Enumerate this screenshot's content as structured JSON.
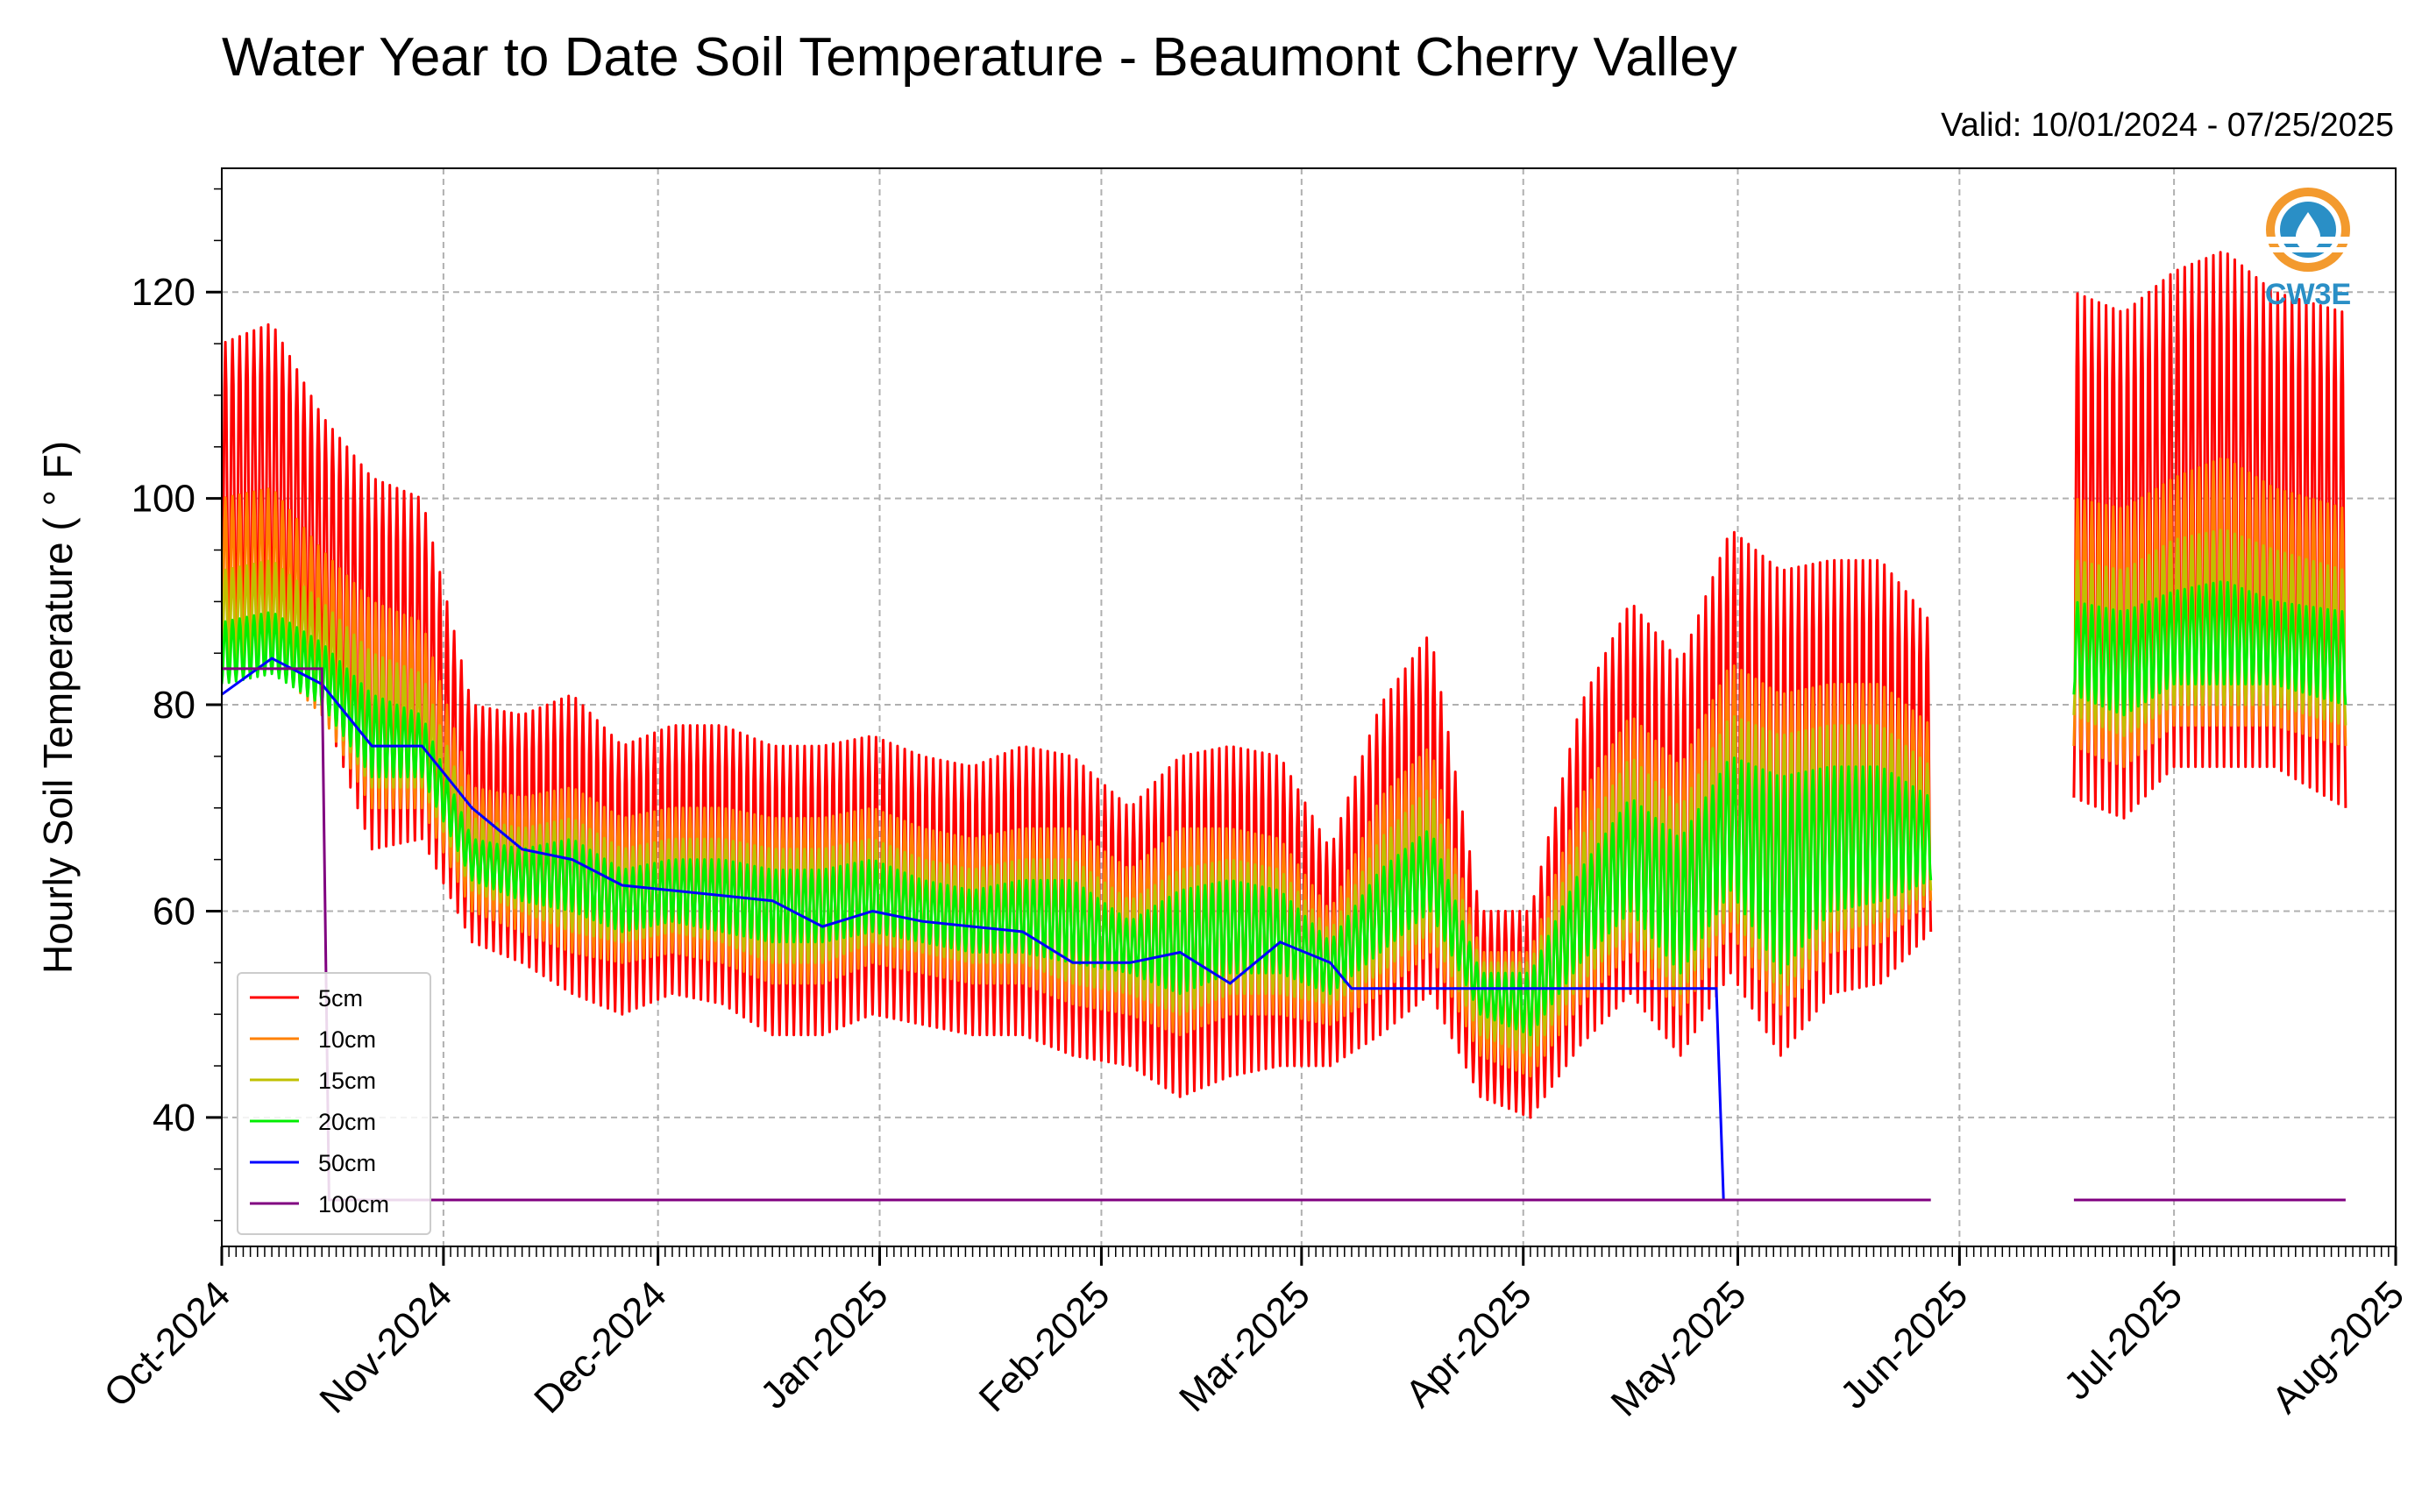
{
  "title": "Water Year to Date Soil Temperature - Beaumont Cherry Valley",
  "valid": "Valid: 10/01/2024 - 07/25/2025",
  "logo_text": "CW3E",
  "chart_data": {
    "type": "line",
    "ylabel": "Hourly Soil Temperature ( ° F)",
    "ylim": [
      27.5,
      132
    ],
    "yticks": [
      40,
      60,
      80,
      100,
      120
    ],
    "x_start": "2024-10-01",
    "x_end": "2025-08-01",
    "x_ticks": [
      "Oct-2024",
      "Nov-2024",
      "Dec-2024",
      "Jan-2025",
      "Feb-2025",
      "Mar-2025",
      "Apr-2025",
      "May-2025",
      "Jun-2025",
      "Jul-2025",
      "Aug-2025"
    ],
    "grid": true,
    "legend_placement": "lower-left",
    "data_segments": [
      [
        "2024-10-01",
        "2025-05-28"
      ],
      [
        "2025-06-17",
        "2025-07-25"
      ]
    ],
    "series": [
      {
        "name": "5cm",
        "color": "#ff0000",
        "points": [
          [
            "2024-10-01",
            85,
            115
          ],
          [
            "2024-10-08",
            85,
            117
          ],
          [
            "2024-10-15",
            80,
            108
          ],
          [
            "2024-10-22",
            66,
            102
          ],
          [
            "2024-10-29",
            67,
            100
          ],
          [
            "2024-11-05",
            57,
            80
          ],
          [
            "2024-11-12",
            55,
            79
          ],
          [
            "2024-11-19",
            52,
            81
          ],
          [
            "2024-11-26",
            50,
            76
          ],
          [
            "2024-12-03",
            52,
            78
          ],
          [
            "2024-12-10",
            51,
            78
          ],
          [
            "2024-12-17",
            48,
            76
          ],
          [
            "2024-12-24",
            48,
            76
          ],
          [
            "2024-12-31",
            50,
            77
          ],
          [
            "2025-01-07",
            49,
            75
          ],
          [
            "2025-01-14",
            48,
            74
          ],
          [
            "2025-01-21",
            48,
            76
          ],
          [
            "2025-01-28",
            46,
            75
          ],
          [
            "2025-02-05",
            45,
            70
          ],
          [
            "2025-02-12",
            42,
            75
          ],
          [
            "2025-02-19",
            44,
            76
          ],
          [
            "2025-02-26",
            45,
            75
          ],
          [
            "2025-03-05",
            45,
            66
          ],
          [
            "2025-03-12",
            48,
            80
          ],
          [
            "2025-03-19",
            52,
            87
          ],
          [
            "2025-03-26",
            42,
            60
          ],
          [
            "2025-04-02",
            40,
            60
          ],
          [
            "2025-04-09",
            47,
            80
          ],
          [
            "2025-04-16",
            52,
            90
          ],
          [
            "2025-04-23",
            46,
            84
          ],
          [
            "2025-04-30",
            54,
            97
          ],
          [
            "2025-05-07",
            46,
            93
          ],
          [
            "2025-05-14",
            52,
            94
          ],
          [
            "2025-05-21",
            53,
            94
          ],
          [
            "2025-05-28",
            58,
            88
          ],
          [
            "2025-06-17",
            71,
            120
          ],
          [
            "2025-06-24",
            69,
            118
          ],
          [
            "2025-07-01",
            74,
            122
          ],
          [
            "2025-07-08",
            74,
            124
          ],
          [
            "2025-07-15",
            74,
            120
          ],
          [
            "2025-07-25",
            70,
            118
          ]
        ]
      },
      {
        "name": "10cm",
        "color": "#ff8000",
        "points": [
          [
            "2024-10-01",
            84,
            100
          ],
          [
            "2024-10-08",
            84,
            101
          ],
          [
            "2024-10-15",
            79,
            95
          ],
          [
            "2024-10-22",
            70,
            90
          ],
          [
            "2024-10-29",
            70,
            88
          ],
          [
            "2024-11-05",
            60,
            72
          ],
          [
            "2024-11-12",
            58,
            71
          ],
          [
            "2024-11-19",
            56,
            72
          ],
          [
            "2024-11-26",
            55,
            69
          ],
          [
            "2024-12-03",
            56,
            70
          ],
          [
            "2024-12-10",
            55,
            70
          ],
          [
            "2024-12-17",
            53,
            69
          ],
          [
            "2024-12-24",
            53,
            69
          ],
          [
            "2024-12-31",
            55,
            70
          ],
          [
            "2025-01-07",
            54,
            68
          ],
          [
            "2025-01-14",
            53,
            67
          ],
          [
            "2025-01-21",
            53,
            68
          ],
          [
            "2025-01-28",
            51,
            68
          ],
          [
            "2025-02-05",
            50,
            64
          ],
          [
            "2025-02-12",
            48,
            68
          ],
          [
            "2025-02-19",
            50,
            68
          ],
          [
            "2025-02-26",
            50,
            67
          ],
          [
            "2025-03-05",
            49,
            60
          ],
          [
            "2025-03-12",
            52,
            71
          ],
          [
            "2025-03-19",
            56,
            76
          ],
          [
            "2025-03-26",
            46,
            56
          ],
          [
            "2025-04-02",
            44,
            56
          ],
          [
            "2025-04-09",
            51,
            71
          ],
          [
            "2025-04-16",
            56,
            79
          ],
          [
            "2025-04-23",
            50,
            74
          ],
          [
            "2025-04-30",
            58,
            84
          ],
          [
            "2025-05-07",
            50,
            81
          ],
          [
            "2025-05-14",
            56,
            82
          ],
          [
            "2025-05-21",
            57,
            82
          ],
          [
            "2025-05-28",
            61,
            78
          ],
          [
            "2025-06-17",
            76,
            100
          ],
          [
            "2025-06-24",
            74,
            99
          ],
          [
            "2025-07-01",
            78,
            102
          ],
          [
            "2025-07-08",
            78,
            104
          ],
          [
            "2025-07-15",
            78,
            101
          ],
          [
            "2025-07-25",
            76,
            99
          ]
        ]
      },
      {
        "name": "15cm",
        "color": "#c0c000",
        "points": [
          [
            "2024-10-01",
            84,
            93
          ],
          [
            "2024-10-08",
            84,
            94
          ],
          [
            "2024-10-15",
            80,
            90
          ],
          [
            "2024-10-22",
            72,
            85
          ],
          [
            "2024-10-29",
            72,
            83
          ],
          [
            "2024-11-05",
            62,
            69
          ],
          [
            "2024-11-12",
            60,
            68
          ],
          [
            "2024-11-19",
            58,
            69
          ],
          [
            "2024-11-26",
            57,
            66
          ],
          [
            "2024-12-03",
            58,
            67
          ],
          [
            "2024-12-10",
            57,
            67
          ],
          [
            "2024-12-17",
            55,
            66
          ],
          [
            "2024-12-24",
            55,
            66
          ],
          [
            "2024-12-31",
            57,
            67
          ],
          [
            "2025-01-07",
            56,
            65
          ],
          [
            "2025-01-14",
            55,
            64
          ],
          [
            "2025-01-21",
            55,
            65
          ],
          [
            "2025-01-28",
            53,
            65
          ],
          [
            "2025-02-05",
            52,
            61
          ],
          [
            "2025-02-12",
            50,
            64
          ],
          [
            "2025-02-19",
            52,
            65
          ],
          [
            "2025-02-26",
            52,
            64
          ],
          [
            "2025-03-05",
            51,
            58
          ],
          [
            "2025-03-12",
            54,
            67
          ],
          [
            "2025-03-19",
            58,
            72
          ],
          [
            "2025-03-26",
            48,
            55
          ],
          [
            "2025-04-02",
            46,
            55
          ],
          [
            "2025-04-09",
            53,
            67
          ],
          [
            "2025-04-16",
            58,
            75
          ],
          [
            "2025-04-23",
            52,
            70
          ],
          [
            "2025-04-30",
            60,
            79
          ],
          [
            "2025-05-07",
            52,
            77
          ],
          [
            "2025-05-14",
            58,
            78
          ],
          [
            "2025-05-21",
            59,
            78
          ],
          [
            "2025-05-28",
            62,
            74
          ],
          [
            "2025-06-17",
            79,
            94
          ],
          [
            "2025-06-24",
            77,
            93
          ],
          [
            "2025-07-01",
            80,
            96
          ],
          [
            "2025-07-08",
            80,
            97
          ],
          [
            "2025-07-15",
            80,
            95
          ],
          [
            "2025-07-25",
            78,
            93
          ]
        ]
      },
      {
        "name": "20cm",
        "color": "#00ee00",
        "points": [
          [
            "2024-10-01",
            82,
            88
          ],
          [
            "2024-10-08",
            83,
            89
          ],
          [
            "2024-10-15",
            80,
            86
          ],
          [
            "2024-10-22",
            73,
            81
          ],
          [
            "2024-10-29",
            73,
            79
          ],
          [
            "2024-11-05",
            63,
            67
          ],
          [
            "2024-11-12",
            61,
            66
          ],
          [
            "2024-11-19",
            60,
            67
          ],
          [
            "2024-11-26",
            58,
            64
          ],
          [
            "2024-12-03",
            59,
            65
          ],
          [
            "2024-12-10",
            58,
            65
          ],
          [
            "2024-12-17",
            57,
            64
          ],
          [
            "2024-12-24",
            57,
            64
          ],
          [
            "2024-12-31",
            58,
            65
          ],
          [
            "2025-01-07",
            57,
            63
          ],
          [
            "2025-01-14",
            56,
            62
          ],
          [
            "2025-01-21",
            56,
            63
          ],
          [
            "2025-01-28",
            55,
            63
          ],
          [
            "2025-02-05",
            54,
            59
          ],
          [
            "2025-02-12",
            52,
            62
          ],
          [
            "2025-02-19",
            54,
            63
          ],
          [
            "2025-02-26",
            54,
            62
          ],
          [
            "2025-03-05",
            52,
            57
          ],
          [
            "2025-03-12",
            56,
            64
          ],
          [
            "2025-03-19",
            60,
            68
          ],
          [
            "2025-03-26",
            50,
            54
          ],
          [
            "2025-04-02",
            48,
            54
          ],
          [
            "2025-04-09",
            55,
            64
          ],
          [
            "2025-04-16",
            60,
            71
          ],
          [
            "2025-04-23",
            54,
            67
          ],
          [
            "2025-04-30",
            62,
            75
          ],
          [
            "2025-05-07",
            54,
            73
          ],
          [
            "2025-05-14",
            60,
            74
          ],
          [
            "2025-05-21",
            61,
            74
          ],
          [
            "2025-05-28",
            63,
            71
          ],
          [
            "2025-06-17",
            81,
            90
          ],
          [
            "2025-06-24",
            79,
            89
          ],
          [
            "2025-07-01",
            82,
            91
          ],
          [
            "2025-07-08",
            82,
            92
          ],
          [
            "2025-07-15",
            82,
            90
          ],
          [
            "2025-07-25",
            80,
            89
          ]
        ]
      },
      {
        "name": "50cm",
        "color": "#0000ff",
        "points": [
          [
            "2024-10-01",
            81
          ],
          [
            "2024-10-08",
            84.5
          ],
          [
            "2024-10-15",
            82
          ],
          [
            "2024-10-22",
            76
          ],
          [
            "2024-10-29",
            76
          ],
          [
            "2024-11-05",
            70
          ],
          [
            "2024-11-12",
            66
          ],
          [
            "2024-11-19",
            65
          ],
          [
            "2024-11-26",
            62.5
          ],
          [
            "2024-12-03",
            62
          ],
          [
            "2024-12-10",
            61.5
          ],
          [
            "2024-12-17",
            61
          ],
          [
            "2024-12-24",
            58.5
          ],
          [
            "2024-12-31",
            60
          ],
          [
            "2025-01-07",
            59
          ],
          [
            "2025-01-14",
            58.5
          ],
          [
            "2025-01-21",
            58
          ],
          [
            "2025-01-28",
            55
          ],
          [
            "2025-02-05",
            55
          ],
          [
            "2025-02-12",
            56
          ],
          [
            "2025-02-19",
            53
          ],
          [
            "2025-02-26",
            57
          ],
          [
            "2025-03-05",
            55
          ],
          [
            "2025-03-08",
            52.5
          ],
          [
            "2025-04-28",
            52.5
          ],
          [
            "2025-04-29",
            32
          ]
        ]
      },
      {
        "name": "100cm",
        "color": "#800080",
        "points": [
          [
            "2024-10-01",
            83.5
          ],
          [
            "2024-10-15",
            83.5
          ],
          [
            "2024-10-16",
            32
          ],
          [
            "2025-05-28",
            32
          ],
          [
            "2025-06-17",
            32
          ],
          [
            "2025-07-25",
            32
          ]
        ]
      }
    ]
  }
}
